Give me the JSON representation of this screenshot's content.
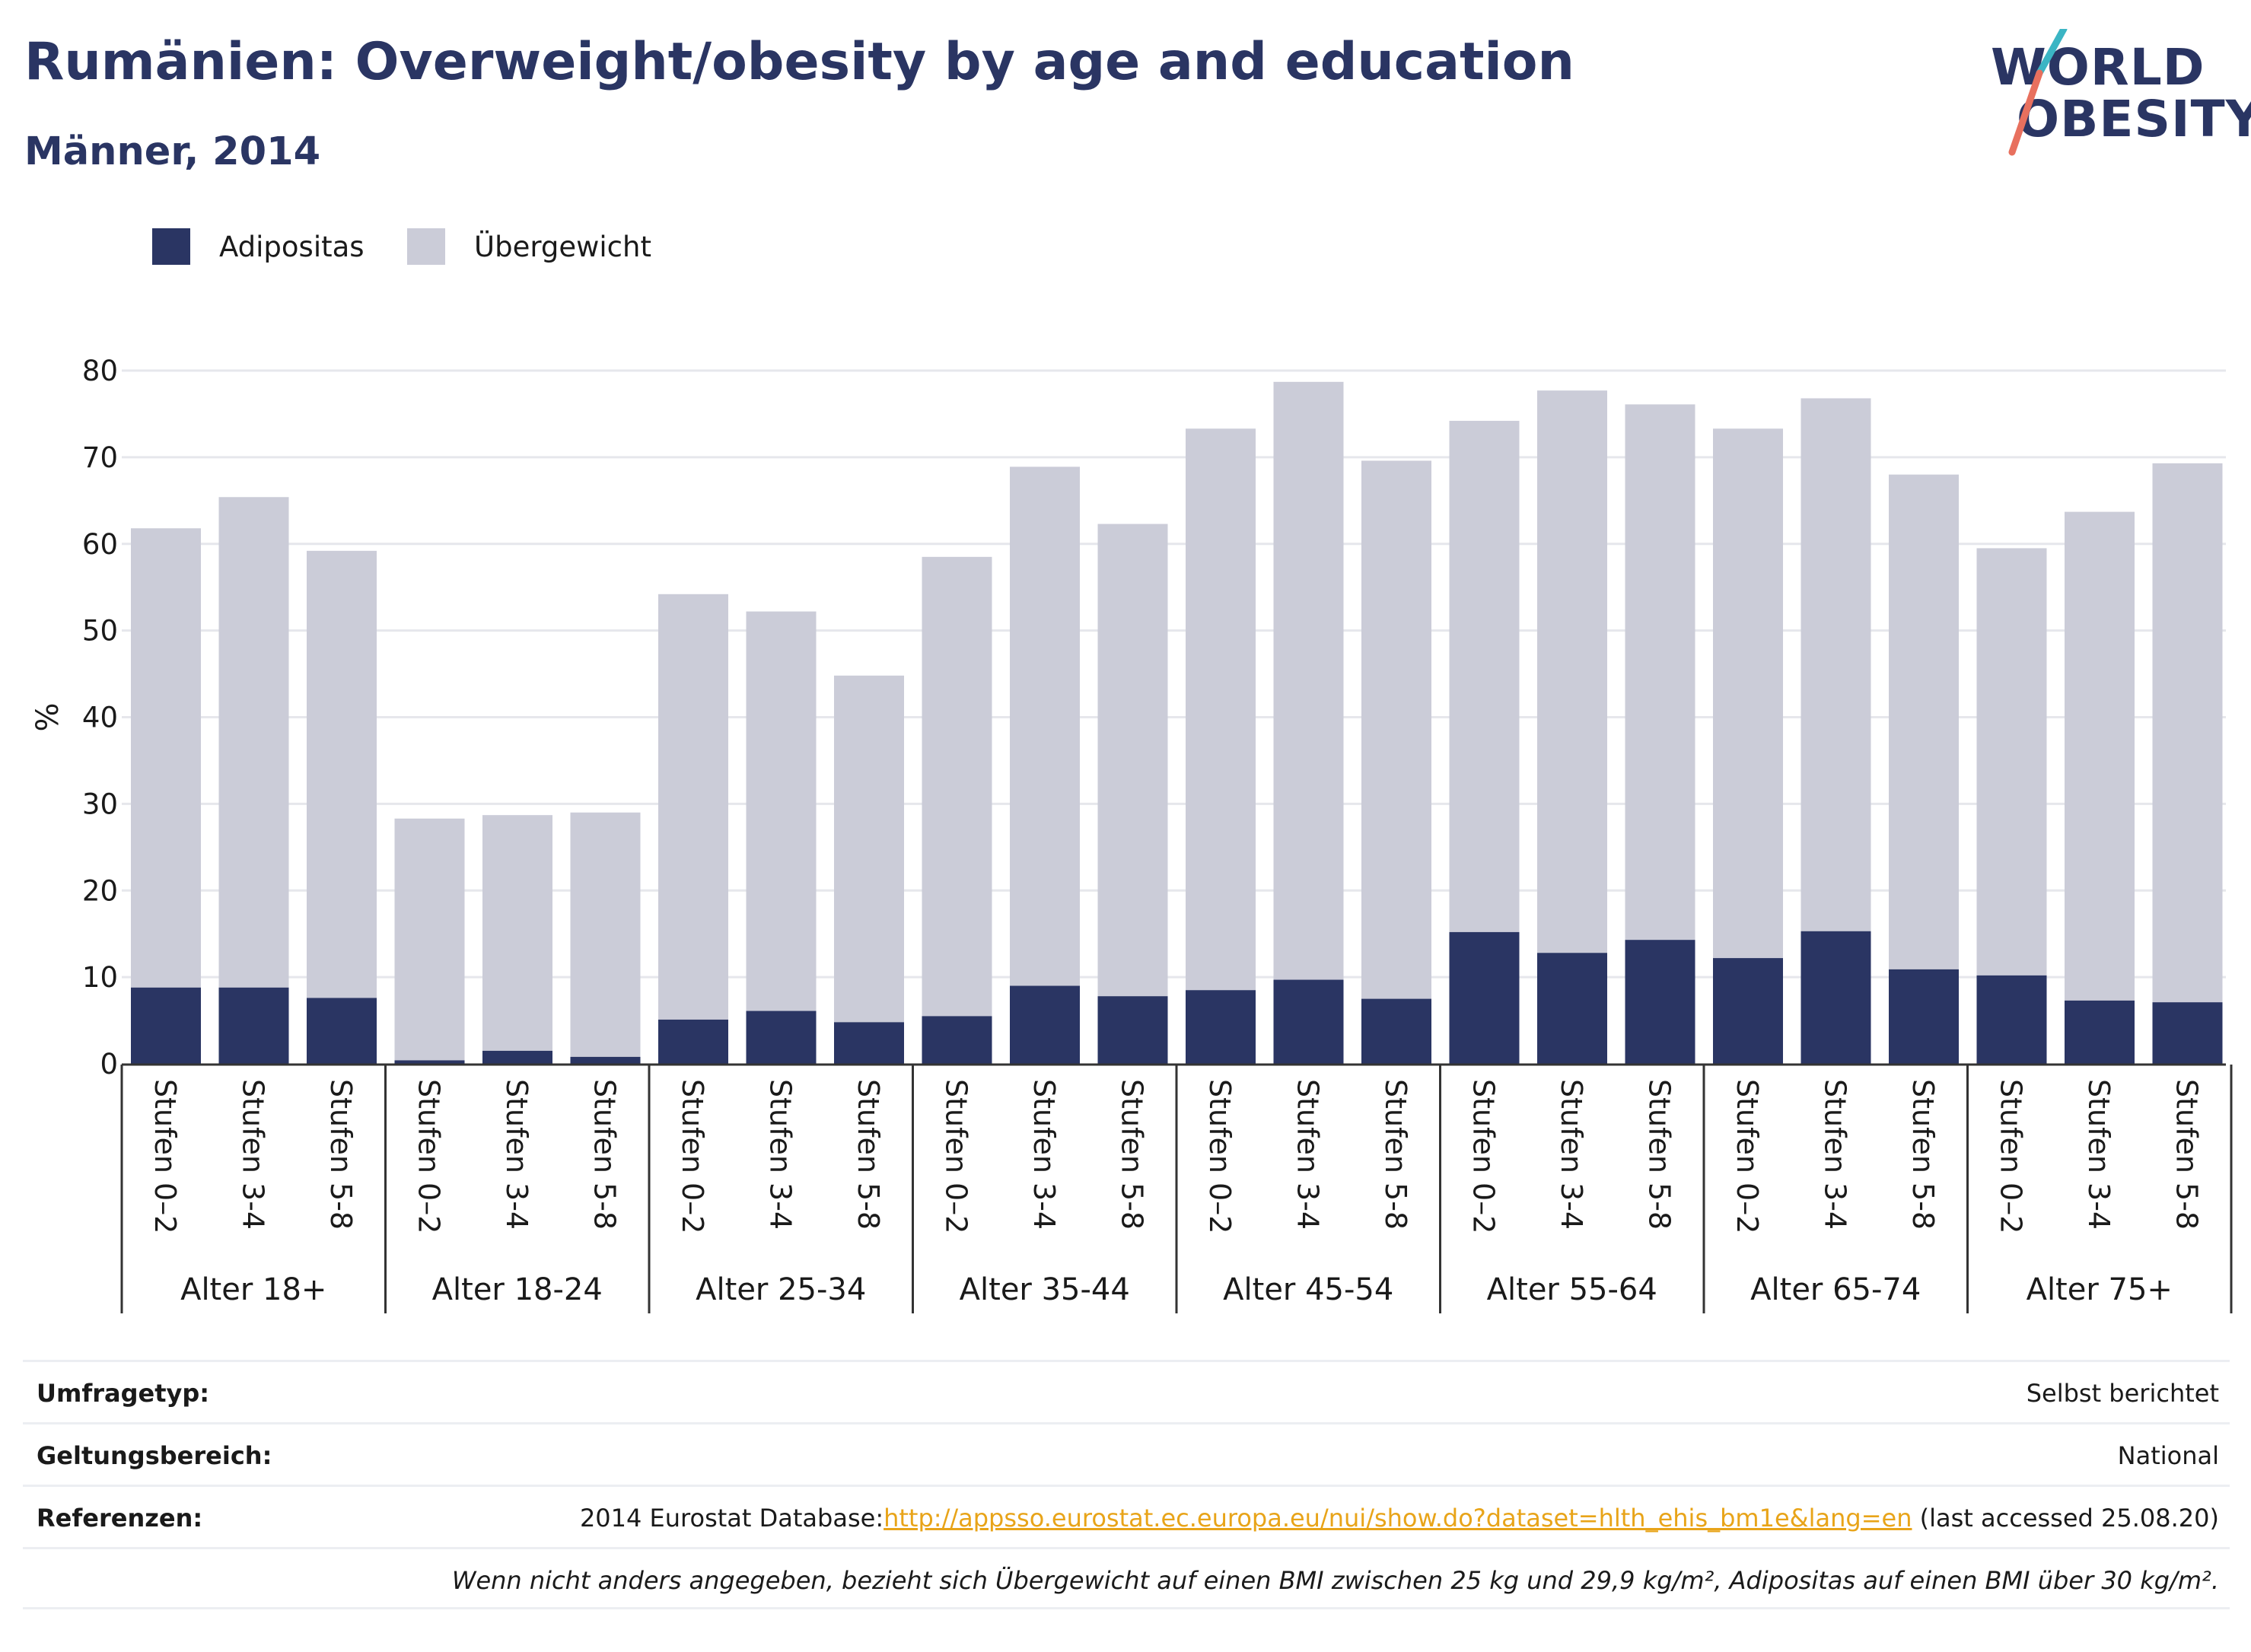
{
  "header": {
    "title": "Rumänien: Overweight/obesity by age and education",
    "subtitle": "Männer, 2014"
  },
  "logo": {
    "line1": "WORLD",
    "line2": "OBESITY"
  },
  "colors": {
    "obesity": "#2a3563",
    "overweight": "#cbccd8",
    "axis": "#333333",
    "grid": "#e6e7ec",
    "logo_slash_teal": "#3bb5c4",
    "logo_slash_coral": "#e8705e"
  },
  "chart_data": {
    "type": "bar",
    "stacked": true,
    "ylabel": "%",
    "ylim": [
      0,
      80
    ],
    "yticks": [
      0,
      10,
      20,
      30,
      40,
      50,
      60,
      70,
      80
    ],
    "grid": true,
    "legend_position": "top-left",
    "groups": [
      "Alter 18+",
      "Alter 18-24",
      "Alter 25-34",
      "Alter 35-44",
      "Alter 45-54",
      "Alter 55-64",
      "Alter 65-74",
      "Alter 75+"
    ],
    "subcategories": [
      "Stufen 0–2",
      "Stufen 3-4",
      "Stufen 5-8"
    ],
    "series": [
      {
        "name": "Adipositas",
        "color": "#2a3563",
        "values": [
          8.8,
          8.8,
          7.6,
          0.4,
          1.5,
          0.8,
          5.1,
          6.1,
          4.8,
          5.5,
          9.0,
          7.8,
          8.5,
          9.7,
          7.5,
          15.2,
          12.8,
          14.3,
          12.2,
          15.3,
          10.9,
          10.2,
          7.3,
          7.1
        ]
      },
      {
        "name": "Übergewicht",
        "color": "#cbccd8",
        "values": [
          53.0,
          56.6,
          51.6,
          27.9,
          27.2,
          28.2,
          49.1,
          46.1,
          40.0,
          53.0,
          59.9,
          54.5,
          64.8,
          69.0,
          62.1,
          59.0,
          64.9,
          61.8,
          61.1,
          61.5,
          57.1,
          49.3,
          56.4,
          62.2
        ]
      }
    ]
  },
  "info": {
    "survey_label": "Umfragetyp:",
    "survey_value": "Selbst berichtet",
    "scope_label": "Geltungsbereich:",
    "scope_value": "National",
    "refs_label": "Referenzen:",
    "refs_prefix": "2014 Eurostat Database:",
    "refs_link": "http://appsso.eurostat.ec.europa.eu/nui/show.do?dataset=hlth_ehis_bm1e&lang=en",
    "refs_suffix": " (last accessed 25.08.20)",
    "note": "Wenn nicht anders angegeben, bezieht sich Übergewicht auf einen BMI zwischen 25 kg und 29,9 kg/m², Adipositas auf einen BMI über 30 kg/m²."
  }
}
